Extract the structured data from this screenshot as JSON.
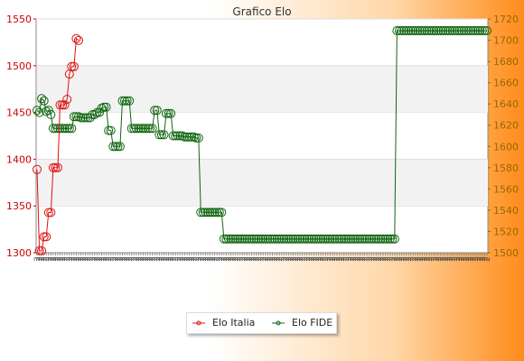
{
  "chart_data": {
    "type": "line",
    "title": "Grafico Elo",
    "xlabel": "",
    "ylabel": "",
    "grid": true,
    "legend_position": "bottom",
    "colors": {
      "elo_italia": "#dd1111",
      "elo_fide": "#116611",
      "left_axis": "#cc0000",
      "right_axis": "#996600"
    },
    "y_left": {
      "ylim": [
        1300,
        1550
      ],
      "ticks": [
        "1300",
        "1350",
        "1400",
        "1450",
        "1500",
        "1550"
      ]
    },
    "y_right": {
      "ylim": [
        1500,
        1720
      ],
      "ticks": [
        "1500",
        "1520",
        "1540",
        "1560",
        "1580",
        "1600",
        "1620",
        "1640",
        "1660",
        "1680",
        "1700",
        "1720"
      ]
    },
    "x_tick_label": "2",
    "series": [
      {
        "name": "Elo Italia",
        "axis": "left",
        "values": [
          1389,
          1302,
          1302,
          1317,
          1317,
          1343,
          1343,
          1391,
          1391,
          1391,
          1458,
          1458,
          1458,
          1464,
          1491,
          1499,
          1499,
          1529,
          1527
        ]
      },
      {
        "name": "Elo FIDE",
        "axis": "right",
        "values": [
          1634,
          1632,
          1645,
          1643,
          1633,
          1634,
          1630,
          1617,
          1617,
          1617,
          1617,
          1617,
          1617,
          1617,
          1617,
          1617,
          1628,
          1628,
          1628,
          1627,
          1627,
          1627,
          1627,
          1627,
          1630,
          1630,
          1632,
          1632,
          1636,
          1637,
          1637,
          1615,
          1615,
          1600,
          1600,
          1600,
          1600,
          1643,
          1643,
          1643,
          1643,
          1617,
          1617,
          1617,
          1617,
          1617,
          1617,
          1617,
          1617,
          1617,
          1617,
          1634,
          1634,
          1611,
          1611,
          1611,
          1631,
          1631,
          1631,
          1610,
          1610,
          1610,
          1610,
          1610,
          1609,
          1609,
          1609,
          1609,
          1609,
          1608,
          1608,
          1538,
          1538,
          1538,
          1538,
          1538,
          1538,
          1538,
          1538,
          1538,
          1538,
          1513,
          1513,
          1513,
          1513,
          1513,
          1513,
          1513,
          1513,
          1513,
          1513,
          1513,
          1513,
          1513,
          1513,
          1513,
          1513,
          1513,
          1513,
          1513,
          1513,
          1513,
          1513,
          1513,
          1513,
          1513,
          1513,
          1513,
          1513,
          1513,
          1513,
          1513,
          1513,
          1513,
          1513,
          1513,
          1513,
          1513,
          1513,
          1513,
          1513,
          1513,
          1513,
          1513,
          1513,
          1513,
          1513,
          1513,
          1513,
          1513,
          1513,
          1513,
          1513,
          1513,
          1513,
          1513,
          1513,
          1513,
          1513,
          1513,
          1513,
          1513,
          1513,
          1513,
          1513,
          1513,
          1513,
          1513,
          1513,
          1513,
          1513,
          1513,
          1513,
          1513,
          1513,
          1513,
          1709,
          1709,
          1709,
          1709,
          1709,
          1709,
          1709,
          1709,
          1709,
          1709,
          1709,
          1709,
          1709,
          1709,
          1709,
          1709,
          1709,
          1709,
          1709,
          1709,
          1709,
          1709,
          1709,
          1709,
          1709,
          1709,
          1709,
          1709,
          1709,
          1709,
          1709,
          1709,
          1709,
          1709,
          1709,
          1709,
          1709,
          1709,
          1709,
          1709
        ]
      }
    ]
  }
}
